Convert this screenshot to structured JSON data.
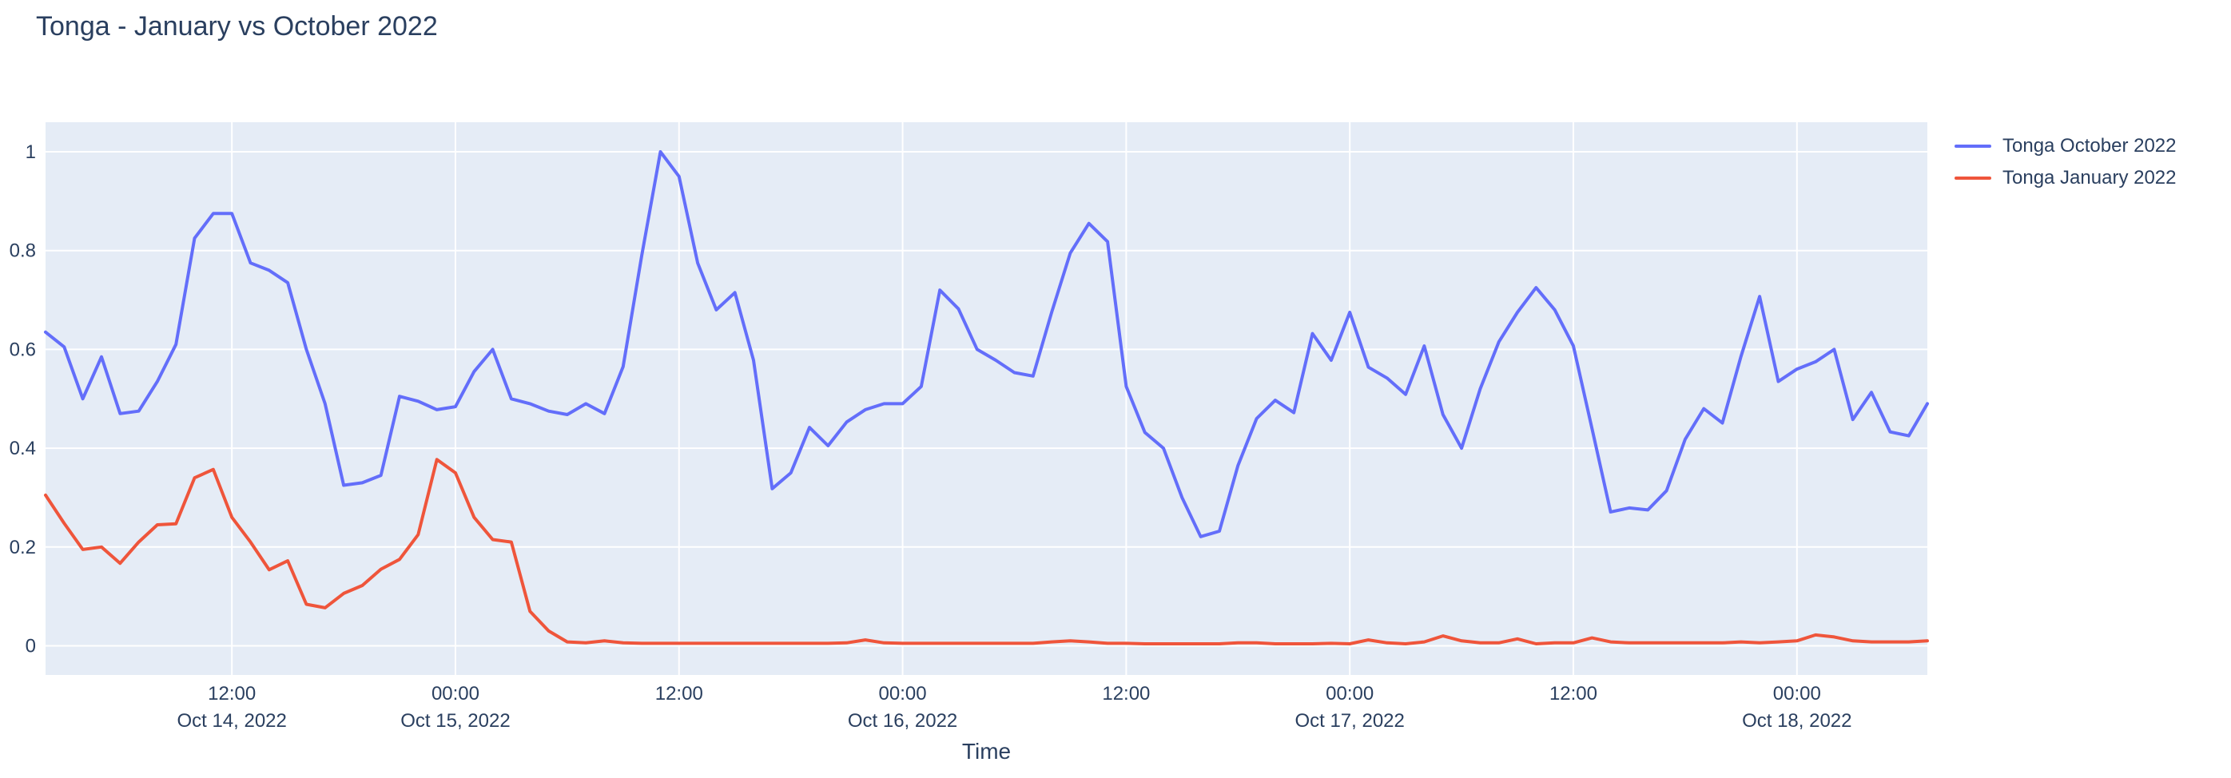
{
  "title": "Tonga - January vs October 2022",
  "colors": {
    "background": "#ffffff",
    "plot_background": "#E5ECF6",
    "grid": "#ffffff",
    "text": "#2a3f5f",
    "october": "#636EFA",
    "january": "#EF553B"
  },
  "legend": {
    "items": [
      {
        "label": "Tonga October 2022",
        "color": "#636EFA"
      },
      {
        "label": "Tonga January 2022",
        "color": "#EF553B"
      }
    ]
  },
  "x_axis": {
    "title": "Time",
    "tick_indices": [
      10,
      22,
      34,
      46,
      58,
      70,
      82,
      94
    ],
    "tick_times": [
      "12:00",
      "00:00",
      "12:00",
      "00:00",
      "12:00",
      "00:00",
      "12:00",
      "00:00"
    ],
    "tick_dates": [
      "Oct 14, 2022",
      "Oct 15, 2022",
      "",
      "Oct 16, 2022",
      "",
      "Oct 17, 2022",
      "",
      "Oct 18, 2022"
    ]
  },
  "y_axis": {
    "tick_labels": [
      "0",
      "0.2",
      "0.4",
      "0.6",
      "0.8",
      "1"
    ],
    "tick_values": [
      0,
      0.2,
      0.4,
      0.6,
      0.8,
      1
    ],
    "range": [
      -0.059,
      1.059
    ]
  },
  "chart_data": {
    "type": "line",
    "title": "Tonga - January vs October 2022",
    "xlabel": "Time",
    "ylabel": "",
    "ylim": [
      -0.06,
      1.06
    ],
    "grid": true,
    "legend_position": "top-right",
    "x_start": "2022-10-14 02:00",
    "x_step": "1 hour",
    "x_unit": "hourly samples from Oct 14 2022 ~02:00 to Oct 18 2022 ~07:00",
    "series": [
      {
        "name": "Tonga October 2022",
        "color": "#636EFA",
        "values": [
          0.635,
          0.605,
          0.5,
          0.585,
          0.47,
          0.475,
          0.535,
          0.61,
          0.825,
          0.875,
          0.875,
          0.775,
          0.76,
          0.735,
          0.6,
          0.49,
          0.325,
          0.33,
          0.345,
          0.505,
          0.495,
          0.478,
          0.484,
          0.555,
          0.6,
          0.5,
          0.49,
          0.475,
          0.468,
          0.49,
          0.47,
          0.565,
          0.79,
          1.0,
          0.95,
          0.775,
          0.68,
          0.715,
          0.578,
          0.318,
          0.35,
          0.442,
          0.405,
          0.453,
          0.478,
          0.49,
          0.49,
          0.525,
          0.72,
          0.682,
          0.6,
          0.578,
          0.553,
          0.546,
          0.675,
          0.795,
          0.855,
          0.818,
          0.525,
          0.432,
          0.4,
          0.3,
          0.221,
          0.232,
          0.365,
          0.46,
          0.497,
          0.472,
          0.632,
          0.578,
          0.675,
          0.564,
          0.542,
          0.509,
          0.607,
          0.468,
          0.4,
          0.52,
          0.615,
          0.675,
          0.725,
          0.68,
          0.607,
          0.44,
          0.271,
          0.279,
          0.275,
          0.314,
          0.418,
          0.48,
          0.451,
          0.586,
          0.707,
          0.535,
          0.56,
          0.575,
          0.6,
          0.458,
          0.513,
          0.433,
          0.425,
          0.49
        ]
      },
      {
        "name": "Tonga January 2022",
        "color": "#EF553B",
        "values": [
          0.305,
          0.248,
          0.195,
          0.2,
          0.167,
          0.21,
          0.245,
          0.247,
          0.34,
          0.357,
          0.26,
          0.21,
          0.154,
          0.172,
          0.084,
          0.077,
          0.106,
          0.122,
          0.155,
          0.175,
          0.225,
          0.377,
          0.35,
          0.26,
          0.215,
          0.21,
          0.07,
          0.03,
          0.008,
          0.006,
          0.01,
          0.006,
          0.005,
          0.005,
          0.005,
          0.005,
          0.005,
          0.005,
          0.005,
          0.005,
          0.005,
          0.005,
          0.005,
          0.006,
          0.012,
          0.006,
          0.005,
          0.005,
          0.005,
          0.005,
          0.005,
          0.005,
          0.005,
          0.005,
          0.008,
          0.01,
          0.008,
          0.005,
          0.005,
          0.004,
          0.004,
          0.004,
          0.004,
          0.004,
          0.006,
          0.006,
          0.004,
          0.004,
          0.004,
          0.005,
          0.004,
          0.012,
          0.006,
          0.004,
          0.008,
          0.02,
          0.01,
          0.006,
          0.006,
          0.014,
          0.004,
          0.006,
          0.006,
          0.016,
          0.008,
          0.006,
          0.006,
          0.006,
          0.006,
          0.006,
          0.006,
          0.008,
          0.006,
          0.008,
          0.01,
          0.022,
          0.018,
          0.01,
          0.008,
          0.008,
          0.008,
          0.01
        ]
      }
    ]
  }
}
